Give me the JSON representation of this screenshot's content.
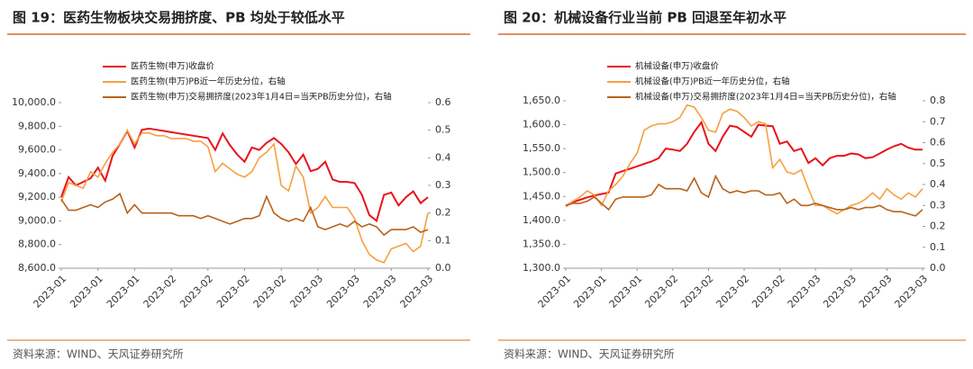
{
  "chart_data": [
    {
      "type": "line",
      "title": "图 19：医药生物板块交易拥挤度、PB 均处于较低水平",
      "source": "资料来源：WIND、天风证券研究所",
      "categories": [
        "2023-01",
        null,
        null,
        null,
        null,
        "2023-01",
        null,
        null,
        null,
        null,
        "2023-01",
        null,
        null,
        null,
        null,
        "2023-02",
        null,
        null,
        null,
        null,
        "2023-02",
        null,
        null,
        null,
        null,
        "2023-02",
        null,
        null,
        null,
        null,
        "2023-02",
        null,
        null,
        null,
        null,
        "2023-03",
        null,
        null,
        null,
        null,
        "2023-03",
        null,
        null,
        null,
        null,
        "2023-03",
        null,
        null,
        null,
        null,
        "2023-03"
      ],
      "ylim": [
        8600,
        10000
      ],
      "yticks": [
        {
          "value": 8600,
          "label": "8,600.0"
        },
        {
          "value": 8800,
          "label": "8,800.0"
        },
        {
          "value": 9000,
          "label": "9,000.0"
        },
        {
          "value": 9200,
          "label": "9,200.0"
        },
        {
          "value": 9400,
          "label": "9,400.0"
        },
        {
          "value": 9600,
          "label": "9,600.0"
        },
        {
          "value": 9800,
          "label": "9,800.0"
        },
        {
          "value": 10000,
          "label": "10,000.0"
        }
      ],
      "y2lim": [
        0,
        0.6
      ],
      "y2ticks": [
        {
          "value": 0,
          "label": "0.0"
        },
        0.1,
        0.2,
        0.3,
        0.4,
        0.5,
        0.6
      ],
      "legend": "top-left",
      "series": [
        {
          "name": "医药生物(申万)收盘价",
          "color": "#e8141b",
          "values": [
            9200,
            9370,
            9300,
            9330,
            9360,
            9450,
            9340,
            9550,
            9650,
            9760,
            9620,
            9770,
            9780,
            9770,
            9760,
            9750,
            9740,
            9730,
            9720,
            9710,
            9700,
            9600,
            9740,
            9640,
            9560,
            9500,
            9620,
            9600,
            9660,
            9700,
            9650,
            9580,
            9480,
            9560,
            9420,
            9440,
            9500,
            9350,
            9330,
            9330,
            9320,
            9220,
            9050,
            9000,
            9220,
            9240,
            9130,
            9200,
            9250,
            9150,
            9200
          ]
        },
        {
          "name": "医药生物(申万)PB近一年历史分位，右轴",
          "color": "#f5a042",
          "axis": "y2",
          "values": [
            0.24,
            0.31,
            0.3,
            0.29,
            0.35,
            0.33,
            0.38,
            0.42,
            0.45,
            0.5,
            0.45,
            0.49,
            0.49,
            0.48,
            0.48,
            0.47,
            0.47,
            0.47,
            0.46,
            0.46,
            0.44,
            0.35,
            0.38,
            0.36,
            0.34,
            0.33,
            0.35,
            0.4,
            0.42,
            0.45,
            0.3,
            0.28,
            0.37,
            0.33,
            0.2,
            0.22,
            0.26,
            0.22,
            0.22,
            0.22,
            0.18,
            0.1,
            0.05,
            0.03,
            0.02,
            0.07,
            0.08,
            0.09,
            0.06,
            0.08,
            0.2
          ]
        },
        {
          "name": "医药生物(申万)交易拥挤度(2023年1月4日=当天PB历史分位)，右轴",
          "color": "#b8621b",
          "axis": "y2",
          "values": [
            0.25,
            0.21,
            0.21,
            0.22,
            0.23,
            0.22,
            0.24,
            0.25,
            0.27,
            0.2,
            0.23,
            0.2,
            0.2,
            0.2,
            0.2,
            0.2,
            0.19,
            0.19,
            0.19,
            0.18,
            0.19,
            0.18,
            0.17,
            0.16,
            0.17,
            0.18,
            0.18,
            0.19,
            0.26,
            0.2,
            0.18,
            0.17,
            0.18,
            0.17,
            0.22,
            0.15,
            0.14,
            0.15,
            0.16,
            0.15,
            0.17,
            0.15,
            0.16,
            0.15,
            0.12,
            0.14,
            0.14,
            0.14,
            0.15,
            0.13,
            0.14
          ]
        }
      ]
    },
    {
      "type": "line",
      "title": "图 20：机械设备行业当前 PB 回退至年初水平",
      "source": "资料来源：WIND、天风证券研究所",
      "categories": [
        "2023-01",
        null,
        null,
        null,
        null,
        "2023-01",
        null,
        null,
        null,
        null,
        "2023-01",
        null,
        null,
        null,
        null,
        "2023-02",
        null,
        null,
        null,
        null,
        "2023-02",
        null,
        null,
        null,
        null,
        "2023-02",
        null,
        null,
        null,
        null,
        "2023-02",
        null,
        null,
        null,
        null,
        "2023-03",
        null,
        null,
        null,
        null,
        "2023-03",
        null,
        null,
        null,
        null,
        "2023-03",
        null,
        null,
        null,
        null,
        "2023-03"
      ],
      "ylim": [
        1300,
        1650
      ],
      "yticks": [
        {
          "value": 1300,
          "label": "1,300.0"
        },
        {
          "value": 1350,
          "label": "1,350.0"
        },
        {
          "value": 1400,
          "label": "1,400.0"
        },
        {
          "value": 1450,
          "label": "1,450.0"
        },
        {
          "value": 1500,
          "label": "1,500.0"
        },
        {
          "value": 1550,
          "label": "1,550.0"
        },
        {
          "value": 1600,
          "label": "1,600.0"
        },
        {
          "value": 1650,
          "label": "1,650.0"
        }
      ],
      "y2lim": [
        0,
        0.8
      ],
      "y2ticks": [
        {
          "value": 0,
          "label": "0.0"
        },
        0.1,
        0.2,
        0.3,
        0.4,
        0.5,
        0.6,
        0.7,
        0.8
      ],
      "legend": "top-left",
      "series": [
        {
          "name": "机械设备(申万)收盘价",
          "color": "#e8141b",
          "values": [
            1430,
            1438,
            1443,
            1448,
            1452,
            1455,
            1458,
            1498,
            1503,
            1508,
            1513,
            1518,
            1523,
            1530,
            1550,
            1548,
            1545,
            1560,
            1585,
            1605,
            1560,
            1545,
            1575,
            1598,
            1595,
            1585,
            1575,
            1600,
            1598,
            1597,
            1560,
            1565,
            1545,
            1550,
            1520,
            1530,
            1515,
            1530,
            1535,
            1535,
            1540,
            1538,
            1530,
            1532,
            1540,
            1548,
            1555,
            1560,
            1552,
            1548,
            1548
          ]
        },
        {
          "name": "机械设备(申万)PB近一年历史分位，右轴",
          "color": "#f5a042",
          "axis": "y2",
          "values": [
            0.3,
            0.32,
            0.34,
            0.37,
            0.35,
            0.3,
            0.37,
            0.4,
            0.44,
            0.5,
            0.55,
            0.66,
            0.68,
            0.69,
            0.69,
            0.7,
            0.72,
            0.78,
            0.77,
            0.72,
            0.66,
            0.65,
            0.74,
            0.76,
            0.75,
            0.72,
            0.68,
            0.7,
            0.69,
            0.48,
            0.52,
            0.46,
            0.45,
            0.47,
            0.38,
            0.3,
            0.3,
            0.28,
            0.26,
            0.28,
            0.3,
            0.31,
            0.33,
            0.36,
            0.33,
            0.38,
            0.35,
            0.33,
            0.36,
            0.34,
            0.38
          ]
        },
        {
          "name": "机械设备(申万)交易拥挤度(2023年1月4日=当天PB历史分位)，右轴",
          "color": "#b8621b",
          "axis": "y2",
          "values": [
            0.3,
            0.31,
            0.31,
            0.32,
            0.34,
            0.31,
            0.28,
            0.33,
            0.34,
            0.34,
            0.34,
            0.34,
            0.35,
            0.4,
            0.38,
            0.38,
            0.38,
            0.37,
            0.43,
            0.36,
            0.34,
            0.44,
            0.38,
            0.36,
            0.37,
            0.36,
            0.37,
            0.37,
            0.35,
            0.35,
            0.36,
            0.31,
            0.33,
            0.3,
            0.3,
            0.31,
            0.3,
            0.29,
            0.28,
            0.28,
            0.29,
            0.28,
            0.29,
            0.29,
            0.3,
            0.28,
            0.27,
            0.27,
            0.26,
            0.25,
            0.28
          ]
        }
      ]
    }
  ]
}
